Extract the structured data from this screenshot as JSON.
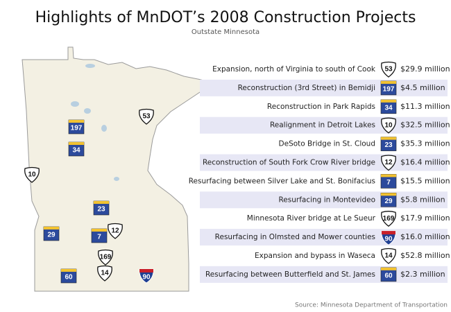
{
  "header": {
    "title": "Highlights of MnDOT’s 2008 Construction Projects",
    "subtitle": "Outstate Minnesota"
  },
  "projects": [
    {
      "description": "Expansion, north of Virginia to south of Cook",
      "route": "53",
      "kind": "us",
      "cost": "$29.9 million"
    },
    {
      "description": "Reconstruction (3rd Street) in Bemidji",
      "route": "197",
      "kind": "state",
      "cost": "$4.5 million"
    },
    {
      "description": "Reconstruction in Park Rapids",
      "route": "34",
      "kind": "state",
      "cost": "$11.3 million"
    },
    {
      "description": "Realignment in Detroit Lakes",
      "route": "10",
      "kind": "us",
      "cost": "$32.5 million"
    },
    {
      "description": "DeSoto Bridge in St. Cloud",
      "route": "23",
      "kind": "state",
      "cost": "$35.3 million"
    },
    {
      "description": "Reconstruction of South Fork Crow River bridge",
      "route": "12",
      "kind": "us",
      "cost": "$16.4 million"
    },
    {
      "description": "Resurfacing between Silver Lake and St. Bonifacius",
      "route": "7",
      "kind": "state",
      "cost": "$15.5 million"
    },
    {
      "description": "Resurfacing in Montevideo",
      "route": "29",
      "kind": "state",
      "cost": "$5.8 million"
    },
    {
      "description": "Minnesota River bridge at Le Sueur",
      "route": "169",
      "kind": "us",
      "cost": "$17.9 million"
    },
    {
      "description": "Resurfacing in Olmsted and Mower counties",
      "route": "90",
      "kind": "interstate",
      "cost": "$16.0 million"
    },
    {
      "description": "Expansion and bypass in Waseca",
      "route": "14",
      "kind": "us",
      "cost": "$52.8 million"
    },
    {
      "description": "Resurfacing between Butterfield and St. James",
      "route": "60",
      "kind": "state",
      "cost": "$2.3 million"
    }
  ],
  "map": {
    "shields": [
      {
        "label": "53",
        "kind": "us"
      },
      {
        "label": "197",
        "kind": "state"
      },
      {
        "label": "34",
        "kind": "state"
      },
      {
        "label": "10",
        "kind": "us"
      },
      {
        "label": "23",
        "kind": "state"
      },
      {
        "label": "29",
        "kind": "state"
      },
      {
        "label": "7",
        "kind": "state"
      },
      {
        "label": "12",
        "kind": "us"
      },
      {
        "label": "169",
        "kind": "us"
      },
      {
        "label": "60",
        "kind": "state"
      },
      {
        "label": "14",
        "kind": "us"
      },
      {
        "label": "90",
        "kind": "interstate"
      }
    ]
  },
  "source": "Source: Minnesota Department of Transportation"
}
